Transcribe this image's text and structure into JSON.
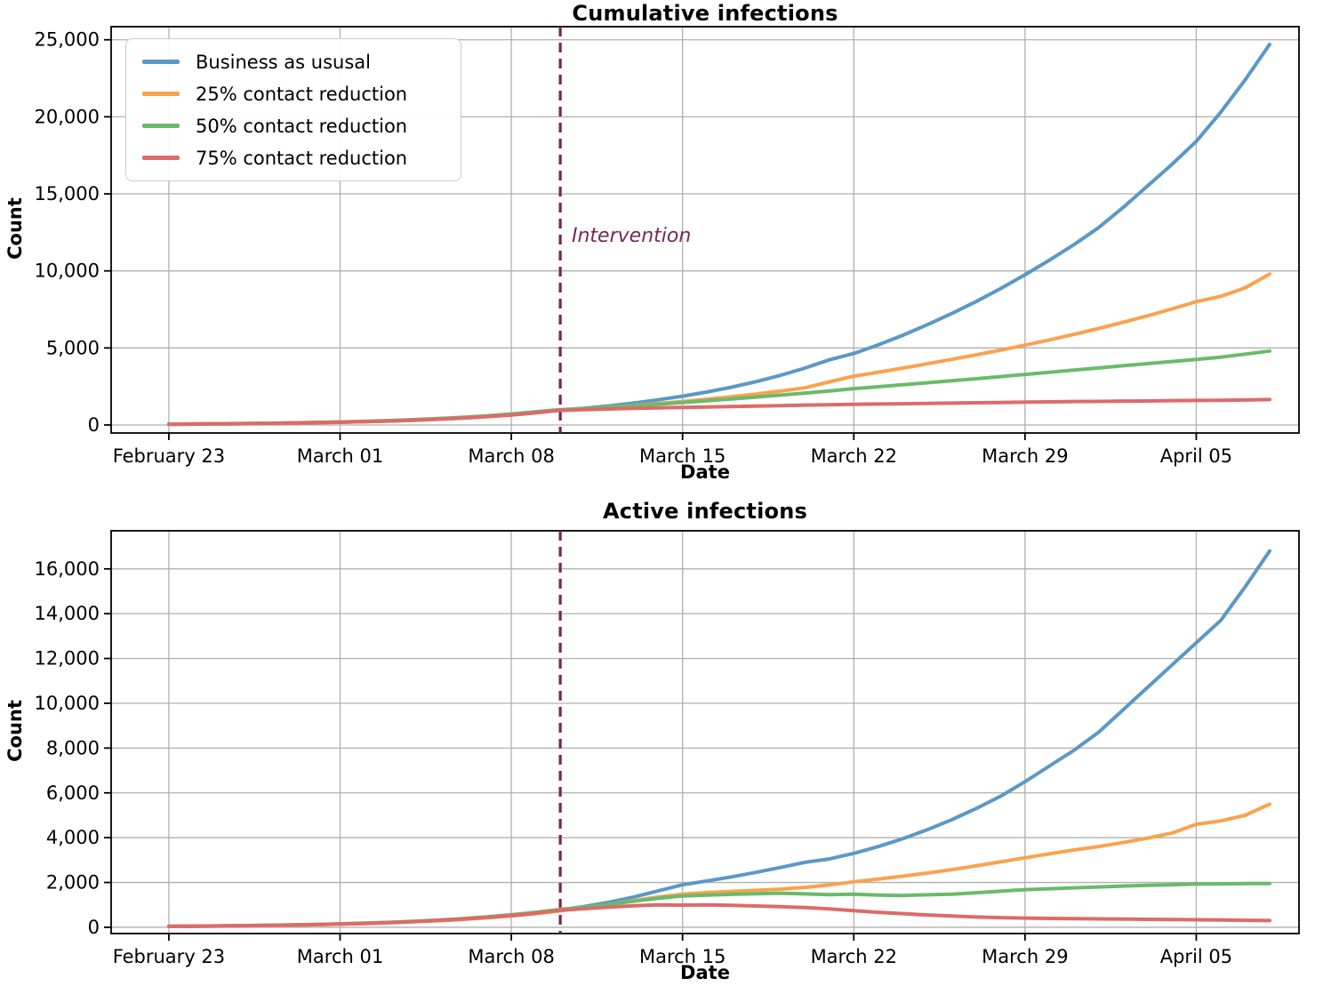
{
  "palette": {
    "grid": "#b0b0b0",
    "axis": "#000000",
    "background": "#ffffff",
    "intervention": "#75285A"
  },
  "chart_data": [
    {
      "type": "line",
      "title": "Cumulative infections",
      "xlabel": "Date",
      "ylabel": "Count",
      "grid": true,
      "x_cadence": "daily, day 0 = February 23",
      "xlim_days": [
        -2.36,
        46.2
      ],
      "ylim": [
        -520,
        25850
      ],
      "xticks": {
        "days": [
          0,
          7,
          14,
          21,
          28,
          35,
          42
        ],
        "labels": [
          "February 23",
          "March 01",
          "March 08",
          "March 15",
          "March 22",
          "March 29",
          "April 05"
        ]
      },
      "yticks": {
        "values": [
          0,
          5000,
          10000,
          15000,
          20000,
          25000
        ],
        "labels": [
          "0",
          "5,000",
          "10,000",
          "15,000",
          "20,000",
          "25,000"
        ]
      },
      "intervention": {
        "day": 16,
        "date": "March 10",
        "style": "dashed",
        "color": "#75285A"
      },
      "annotation": {
        "text": "Intervention",
        "day": 16.5,
        "value": 12200,
        "color": "#75285A"
      },
      "legend": {
        "position": "upper left"
      },
      "series": [
        {
          "name": "Business as ususal",
          "color": "#5B98C5",
          "values": [
            50,
            60,
            72,
            87,
            105,
            127,
            153,
            185,
            223,
            270,
            326,
            394,
            476,
            575,
            695,
            820,
            960,
            1090,
            1240,
            1420,
            1630,
            1870,
            2140,
            2450,
            2810,
            3220,
            3690,
            4230,
            4640,
            5200,
            5820,
            6500,
            7230,
            8010,
            8850,
            9750,
            10700,
            11700,
            12800,
            14100,
            15500,
            16900,
            18400,
            20300,
            22400,
            24700
          ]
        },
        {
          "name": "25% contact reduction",
          "color": "#FAA24E",
          "values": [
            45,
            55,
            67,
            81,
            98,
            119,
            144,
            174,
            210,
            254,
            307,
            371,
            448,
            541,
            654,
            790,
            950,
            1060,
            1160,
            1270,
            1390,
            1520,
            1670,
            1830,
            2010,
            2200,
            2410,
            2800,
            3170,
            3420,
            3690,
            3970,
            4260,
            4550,
            4860,
            5180,
            5520,
            5880,
            6260,
            6660,
            7080,
            7530,
            8000,
            8350,
            8900,
            9800
          ]
        },
        {
          "name": "50% contact reduction",
          "color": "#69BB69",
          "values": [
            55,
            66,
            79,
            95,
            114,
            137,
            165,
            198,
            238,
            286,
            344,
            413,
            496,
            596,
            716,
            860,
            1000,
            1060,
            1150,
            1250,
            1350,
            1460,
            1570,
            1690,
            1810,
            1940,
            2070,
            2210,
            2360,
            2480,
            2610,
            2740,
            2870,
            3000,
            3140,
            3280,
            3420,
            3560,
            3700,
            3840,
            3980,
            4120,
            4260,
            4400,
            4600,
            4800
          ]
        },
        {
          "name": "75% contact reduction",
          "color": "#DE6A6A",
          "values": [
            48,
            58,
            70,
            84,
            101,
            122,
            147,
            177,
            213,
            257,
            310,
            373,
            450,
            542,
            653,
            787,
            950,
            1000,
            1040,
            1080,
            1110,
            1140,
            1170,
            1200,
            1230,
            1260,
            1290,
            1310,
            1340,
            1360,
            1380,
            1400,
            1420,
            1440,
            1460,
            1480,
            1500,
            1520,
            1530,
            1550,
            1560,
            1580,
            1590,
            1600,
            1620,
            1650
          ]
        }
      ]
    },
    {
      "type": "line",
      "title": "Active infections",
      "xlabel": "Date",
      "ylabel": "Count",
      "grid": true,
      "x_cadence": "daily, day 0 = February 23",
      "xlim_days": [
        -2.36,
        46.2
      ],
      "ylim": [
        -280,
        17700
      ],
      "xticks": {
        "days": [
          0,
          7,
          14,
          21,
          28,
          35,
          42
        ],
        "labels": [
          "February 23",
          "March 01",
          "March 08",
          "March 15",
          "March 22",
          "March 29",
          "April 05"
        ]
      },
      "yticks": {
        "values": [
          0,
          2000,
          4000,
          6000,
          8000,
          10000,
          12000,
          14000,
          16000
        ],
        "labels": [
          "0",
          "2,000",
          "4,000",
          "6,000",
          "8,000",
          "10,000",
          "12,000",
          "14,000",
          "16,000"
        ]
      },
      "intervention": {
        "day": 16,
        "date": "March 10",
        "style": "dashed",
        "color": "#75285A"
      },
      "series": [
        {
          "name": "Business as ususal",
          "color": "#5B98C5",
          "values": [
            40,
            48,
            58,
            70,
            84,
            101,
            121,
            146,
            175,
            211,
            254,
            305,
            367,
            442,
            532,
            640,
            770,
            930,
            1120,
            1350,
            1620,
            1900,
            2070,
            2250,
            2450,
            2670,
            2900,
            3050,
            3300,
            3600,
            3950,
            4350,
            4800,
            5300,
            5850,
            6500,
            7200,
            7900,
            8700,
            9700,
            10700,
            11700,
            12700,
            13700,
            15200,
            16800
          ]
        },
        {
          "name": "25% contact reduction",
          "color": "#FAA24E",
          "values": [
            38,
            46,
            55,
            66,
            80,
            96,
            115,
            139,
            167,
            201,
            242,
            291,
            350,
            421,
            507,
            610,
            735,
            870,
            1020,
            1190,
            1350,
            1480,
            1550,
            1600,
            1650,
            1700,
            1780,
            1890,
            2030,
            2150,
            2280,
            2420,
            2570,
            2740,
            2920,
            3100,
            3280,
            3450,
            3600,
            3780,
            3980,
            4200,
            4600,
            4750,
            5000,
            5500
          ]
        },
        {
          "name": "50% contact reduction",
          "color": "#69BB69",
          "values": [
            42,
            51,
            61,
            73,
            88,
            106,
            127,
            153,
            184,
            221,
            266,
            320,
            385,
            463,
            557,
            670,
            800,
            900,
            1030,
            1160,
            1290,
            1400,
            1440,
            1470,
            1500,
            1520,
            1490,
            1460,
            1480,
            1440,
            1420,
            1450,
            1480,
            1540,
            1610,
            1680,
            1720,
            1760,
            1800,
            1840,
            1870,
            1900,
            1930,
            1940,
            1950,
            1950
          ]
        },
        {
          "name": "75% contact reduction",
          "color": "#DE6A6A",
          "values": [
            40,
            48,
            58,
            70,
            84,
            100,
            120,
            145,
            174,
            209,
            251,
            302,
            363,
            437,
            525,
            630,
            760,
            830,
            900,
            960,
            1000,
            990,
            1000,
            980,
            950,
            920,
            880,
            820,
            740,
            670,
            610,
            550,
            500,
            460,
            430,
            410,
            395,
            385,
            375,
            365,
            355,
            345,
            335,
            325,
            310,
            300
          ]
        }
      ]
    }
  ]
}
